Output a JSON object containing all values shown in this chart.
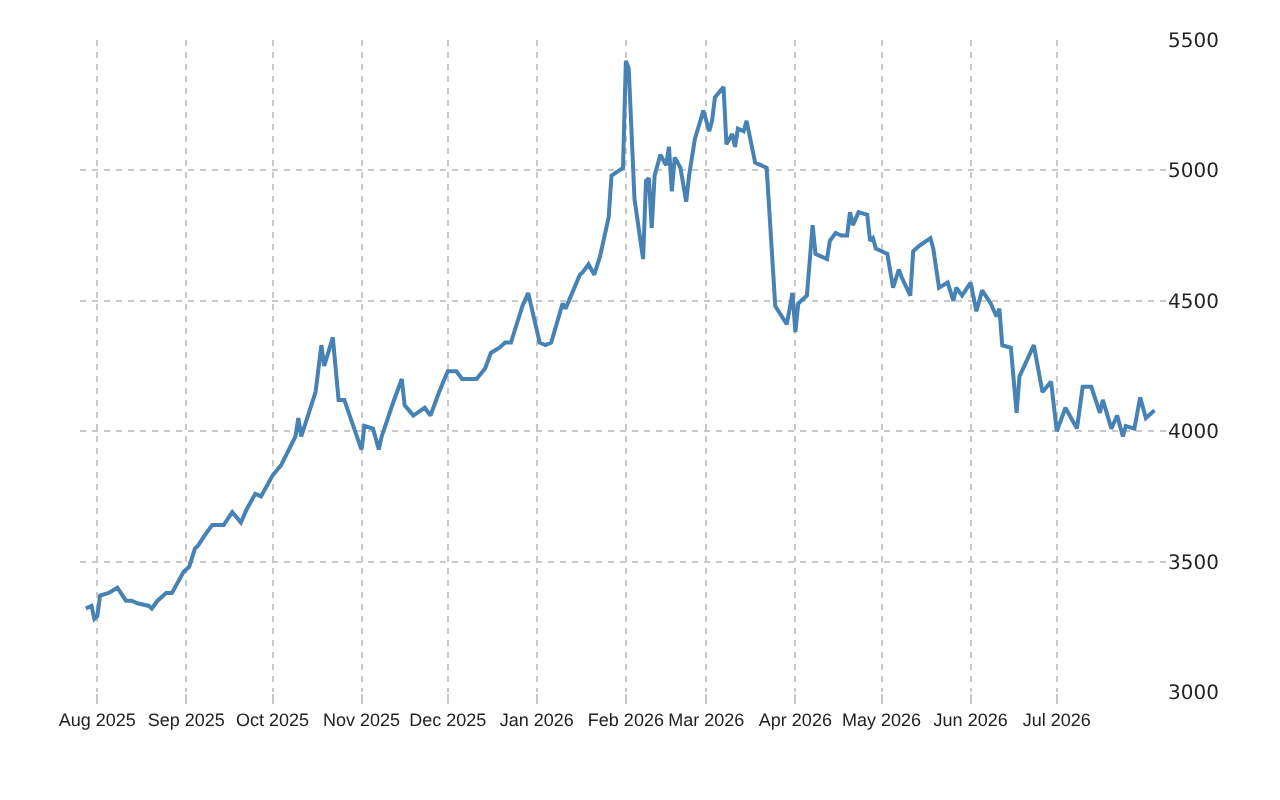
{
  "chart_data": {
    "type": "line",
    "x": [
      "2025-07-28",
      "2025-07-30",
      "2025-07-31",
      "2025-08-01",
      "2025-08-02",
      "2025-08-05",
      "2025-08-08",
      "2025-08-11",
      "2025-08-13",
      "2025-08-15",
      "2025-08-19",
      "2025-08-20",
      "2025-08-22",
      "2025-08-25",
      "2025-08-27",
      "2025-08-31",
      "2025-09-02",
      "2025-09-04",
      "2025-09-05",
      "2025-09-08",
      "2025-09-10",
      "2025-09-14",
      "2025-09-17",
      "2025-09-20",
      "2025-09-22",
      "2025-09-25",
      "2025-09-27",
      "2025-10-01",
      "2025-10-04",
      "2025-10-09",
      "2025-10-10",
      "2025-10-11",
      "2025-10-16",
      "2025-10-18",
      "2025-10-19",
      "2025-10-22",
      "2025-10-24",
      "2025-10-26",
      "2025-10-31",
      "2025-11-01",
      "2025-11-02",
      "2025-11-05",
      "2025-11-07",
      "2025-11-08",
      "2025-11-12",
      "2025-11-15",
      "2025-11-16",
      "2025-11-19",
      "2025-11-23",
      "2025-11-25",
      "2025-11-28",
      "2025-12-01",
      "2025-12-04",
      "2025-12-06",
      "2025-12-11",
      "2025-12-14",
      "2025-12-16",
      "2025-12-19",
      "2025-12-21",
      "2025-12-23",
      "2025-12-27",
      "2025-12-29",
      "2026-01-02",
      "2026-01-04",
      "2026-01-06",
      "2026-01-10",
      "2026-01-11",
      "2026-01-16",
      "2026-01-17",
      "2026-01-19",
      "2026-01-21",
      "2026-01-23",
      "2026-01-26",
      "2026-01-27",
      "2026-01-31",
      "2026-02-01",
      "2026-02-02",
      "2026-02-04",
      "2026-02-07",
      "2026-02-08",
      "2026-02-09",
      "2026-02-10",
      "2026-02-11",
      "2026-02-13",
      "2026-02-15",
      "2026-02-16",
      "2026-02-17",
      "2026-02-18",
      "2026-02-20",
      "2026-02-22",
      "2026-02-23",
      "2026-02-25",
      "2026-02-28",
      "2026-03-02",
      "2026-03-03",
      "2026-03-04",
      "2026-03-07",
      "2026-03-08",
      "2026-03-10",
      "2026-03-11",
      "2026-03-12",
      "2026-03-14",
      "2026-03-15",
      "2026-03-18",
      "2026-03-20",
      "2026-03-22",
      "2026-03-25",
      "2026-03-29",
      "2026-03-31",
      "2026-04-01",
      "2026-04-02",
      "2026-04-05",
      "2026-04-07",
      "2026-04-08",
      "2026-04-12",
      "2026-04-13",
      "2026-04-15",
      "2026-04-17",
      "2026-04-19",
      "2026-04-20",
      "2026-04-21",
      "2026-04-23",
      "2026-04-26",
      "2026-04-27",
      "2026-04-28",
      "2026-04-29",
      "2026-05-01",
      "2026-05-03",
      "2026-05-05",
      "2026-05-07",
      "2026-05-08",
      "2026-05-11",
      "2026-05-12",
      "2026-05-14",
      "2026-05-18",
      "2026-05-19",
      "2026-05-21",
      "2026-05-24",
      "2026-05-26",
      "2026-05-27",
      "2026-05-29",
      "2026-06-01",
      "2026-06-03",
      "2026-06-05",
      "2026-06-08",
      "2026-06-10",
      "2026-06-11",
      "2026-06-12",
      "2026-06-15",
      "2026-06-17",
      "2026-06-18",
      "2026-06-23",
      "2026-06-26",
      "2026-06-29",
      "2026-07-01",
      "2026-07-04",
      "2026-07-08",
      "2026-07-10",
      "2026-07-13",
      "2026-07-16",
      "2026-07-17",
      "2026-07-20",
      "2026-07-22",
      "2026-07-24",
      "2026-07-25",
      "2026-07-28",
      "2026-07-30",
      "2026-08-01",
      "2026-08-04"
    ],
    "series": [
      {
        "color": "#4682b4",
        "values": [
          3320,
          3330,
          3280,
          3290,
          3370,
          3380,
          3400,
          3350,
          3350,
          3340,
          3330,
          3320,
          3350,
          3380,
          3380,
          3460,
          3480,
          3550,
          3560,
          3610,
          3640,
          3640,
          3690,
          3650,
          3700,
          3760,
          3750,
          3830,
          3870,
          3980,
          4050,
          3980,
          4150,
          4330,
          4250,
          4360,
          4120,
          4120,
          3960,
          3930,
          4020,
          4010,
          3930,
          3980,
          4110,
          4200,
          4100,
          4060,
          4090,
          4060,
          4150,
          4230,
          4230,
          4200,
          4200,
          4240,
          4300,
          4320,
          4340,
          4340,
          4480,
          4530,
          4340,
          4330,
          4340,
          4490,
          4470,
          4600,
          4610,
          4640,
          4600,
          4670,
          4820,
          4980,
          5010,
          5420,
          5390,
          4890,
          4660,
          4960,
          4970,
          4780,
          4980,
          5060,
          5020,
          5090,
          4920,
          5050,
          5010,
          4880,
          4980,
          5120,
          5230,
          5150,
          5190,
          5280,
          5320,
          5100,
          5140,
          5090,
          5160,
          5150,
          5190,
          5030,
          5020,
          5010,
          4480,
          4410,
          4530,
          4380,
          4490,
          4520,
          4790,
          4680,
          4660,
          4730,
          4760,
          4750,
          4750,
          4840,
          4790,
          4840,
          4830,
          4730,
          4740,
          4700,
          4690,
          4680,
          4550,
          4620,
          4590,
          4520,
          4690,
          4710,
          4740,
          4700,
          4550,
          4570,
          4500,
          4550,
          4520,
          4570,
          4460,
          4540,
          4490,
          4440,
          4470,
          4330,
          4320,
          4070,
          4210,
          4330,
          4150,
          4190,
          4000,
          4090,
          4010,
          4170,
          4170,
          4070,
          4120,
          4010,
          4060,
          3980,
          4020,
          4010,
          4130,
          4050,
          4080
        ]
      }
    ],
    "xlim": [
      "2025-07-26",
      "2026-08-08"
    ],
    "xticks": [
      {
        "value": "2025-08-01",
        "label": "Aug 2025"
      },
      {
        "value": "2025-09-01",
        "label": "Sep 2025"
      },
      {
        "value": "2025-10-01",
        "label": "Oct 2025"
      },
      {
        "value": "2025-11-01",
        "label": "Nov 2025"
      },
      {
        "value": "2025-12-01",
        "label": "Dec 2025"
      },
      {
        "value": "2026-01-01",
        "label": "Jan 2026"
      },
      {
        "value": "2026-02-01",
        "label": "Feb 2026"
      },
      {
        "value": "2026-03-01",
        "label": "Mar 2026"
      },
      {
        "value": "2026-04-01",
        "label": "Apr 2026"
      },
      {
        "value": "2026-05-01",
        "label": "May 2026"
      },
      {
        "value": "2026-06-01",
        "label": "Jun 2026"
      },
      {
        "value": "2026-07-01",
        "label": "Jul 2026"
      }
    ],
    "ylim": [
      3000,
      5500
    ],
    "yticks": [
      3000,
      3500,
      4000,
      4500,
      5000,
      5500
    ],
    "grid": true,
    "marker": "none",
    "line_style": "solid"
  }
}
